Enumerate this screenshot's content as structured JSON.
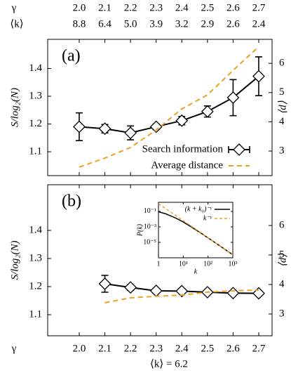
{
  "chart_data": [
    {
      "type": "line",
      "panel_label": "(a)",
      "ylabel": "S/log₂(N)",
      "y2label": "⟨d⟩",
      "x2label": "γ",
      "x2ticks": [
        {
          "value": 2,
          "label": "2.0"
        },
        2.1,
        2.2,
        2.3,
        2.4,
        2.5,
        2.6,
        2.7
      ],
      "k_label": "⟨k⟩",
      "k_values": [
        8.8,
        6.4,
        5,
        3.9,
        3.2,
        2.9,
        2.6,
        2.4
      ],
      "k_value_labels": [
        "8.8",
        "6.4",
        "5.0",
        "3.9",
        "3.2",
        "2.9",
        "2.6",
        "2.4"
      ],
      "x": [
        2.0,
        2.1,
        2.2,
        2.3,
        2.4,
        2.5,
        2.6,
        2.7
      ],
      "xlim": [
        1.877,
        2.752
      ],
      "ylim": [
        1.014,
        1.505
      ],
      "yticks": [
        1.1,
        1.2,
        1.3,
        1.4
      ],
      "y2lim": [
        2.16,
        6.82
      ],
      "y2ticks": [
        3,
        4,
        5,
        6
      ],
      "legend": "lower right",
      "series": [
        {
          "name": "Search information",
          "color": "#000000",
          "marker": "diamond",
          "values": [
            1.19,
            1.183,
            1.168,
            1.19,
            1.212,
            1.245,
            1.295,
            1.372
          ],
          "errors": [
            0.05,
            0.015,
            0.025,
            0.01,
            0.015,
            0.02,
            0.065,
            0.07
          ]
        },
        {
          "name": "Average distance",
          "color": "#f0a020",
          "dash": true,
          "axis": "y2",
          "values": [
            2.45,
            2.76,
            3.12,
            3.72,
            4.44,
            4.92,
            5.76,
            6.57
          ]
        }
      ]
    },
    {
      "type": "line",
      "panel_label": "(b)",
      "ylabel": "S/log₂(N)",
      "y2label": "⟨d⟩",
      "xlabel": "γ",
      "xticks": [
        {
          "value": 2,
          "label": "2.0"
        },
        2.1,
        2.2,
        2.3,
        2.4,
        2.5,
        2.6,
        2.7
      ],
      "subtitle": "⟨k⟩ = 6.2",
      "x": [
        2.1,
        2.2,
        2.3,
        2.4,
        2.5,
        2.6,
        2.7
      ],
      "xlim": [
        1.877,
        2.752
      ],
      "ylim": [
        1.025,
        1.5625
      ],
      "yticks": [
        1.1,
        1.2,
        1.3,
        1.4
      ],
      "y2lim": [
        2.262,
        7.381
      ],
      "y2ticks": [
        3,
        4,
        5,
        6
      ],
      "series": [
        {
          "name": "Search information",
          "color": "#000000",
          "marker": "diamond",
          "values": [
            1.21,
            1.197,
            1.185,
            1.184,
            1.18,
            1.177,
            1.176
          ],
          "errors": [
            0.03,
            0.01,
            0.006,
            0.006,
            0.006,
            0.006,
            0.006
          ]
        },
        {
          "name": "Average distance",
          "color": "#f0a020",
          "dash": true,
          "axis": "y2",
          "values": [
            3.38,
            3.55,
            3.6,
            3.64,
            3.74,
            3.79,
            3.81
          ]
        }
      ]
    },
    {
      "type": "line",
      "inset": true,
      "xlabel": "k",
      "ylabel": "P(k)",
      "xscale": "log",
      "yscale": "log",
      "x": [
        1,
        2,
        5,
        10,
        20,
        50,
        100,
        200,
        500,
        1000
      ],
      "xlim": [
        1,
        1000
      ],
      "xticks": [
        1,
        {
          "value": 10,
          "label": "10¹"
        },
        {
          "value": 100,
          "label": "10²"
        },
        {
          "value": 1000,
          "label": "10³"
        }
      ],
      "ylim": [
        1e-07,
        1.5
      ],
      "yticks": [
        {
          "value": 0.1,
          "label": "10⁻¹"
        },
        {
          "value": 0.001,
          "label": "10⁻³"
        },
        {
          "value": 1e-05,
          "label": "10⁻⁵"
        }
      ],
      "legend": "upper right",
      "series": [
        {
          "name": "(k + k₀)⁻ᵞ",
          "color": "#000000",
          "values": [
            0.0894,
            0.0474,
            0.01383,
            0.00423,
            0.001114,
            0.000168,
            3.8e-05,
            8.5e-06,
            1.14e-06,
            2.5e-07
          ]
        },
        {
          "name": "k⁻ᵞ",
          "color": "#f0a020",
          "dash": true,
          "values": [
            1,
            0.218,
            0.029,
            0.0063,
            0.00137,
            0.000185,
            3.98e-05,
            8.7e-06,
            1.19e-06,
            2.5e-07
          ]
        }
      ]
    }
  ]
}
